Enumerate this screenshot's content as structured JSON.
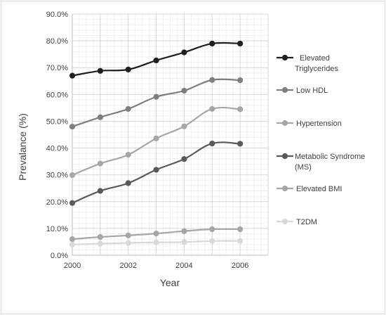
{
  "chart_data": {
    "type": "line",
    "xlabel": "Year",
    "ylabel": "Prevalance (%)",
    "x": [
      2000,
      2001,
      2002,
      2003,
      2004,
      2005,
      2006
    ],
    "x_ticks": [
      "2000",
      "2002",
      "2004",
      "2006"
    ],
    "y_ticks": [
      "0.0%",
      "10.0%",
      "20.0%",
      "30.0%",
      "40.0%",
      "50.0%",
      "60.0%",
      "70.0%",
      "80.0%",
      "90.0%"
    ],
    "xlim": [
      2000,
      2007
    ],
    "ylim": [
      0,
      90
    ],
    "grid": true,
    "legend_position": "right",
    "series": [
      {
        "name": "Elevated Triglycerides",
        "legend_lines": [
          "Elevated",
          "Triglycerides"
        ],
        "color": "#1f1f1f",
        "values": [
          67.0,
          68.8,
          69.3,
          72.7,
          75.7,
          79.0,
          79.0
        ]
      },
      {
        "name": "Low HDL",
        "legend_lines": [
          "Low HDL"
        ],
        "color": "#7f7f7f",
        "values": [
          48.0,
          51.5,
          54.6,
          59.1,
          61.4,
          65.4,
          65.3
        ]
      },
      {
        "name": "Hypertension",
        "legend_lines": [
          "Hypertension"
        ],
        "color": "#a6a6a6",
        "values": [
          29.9,
          34.2,
          37.5,
          43.6,
          48.1,
          54.6,
          54.5
        ]
      },
      {
        "name": "Metabolic Syndrome (MS)",
        "legend_lines": [
          "Metabolic Syndrome",
          "(MS)"
        ],
        "color": "#595959",
        "values": [
          19.5,
          24.0,
          26.9,
          31.9,
          35.9,
          41.7,
          41.6
        ]
      },
      {
        "name": "Elevated BMI",
        "legend_lines": [
          "Elevated BMI"
        ],
        "color": "#a6a6a6",
        "values": [
          6.0,
          6.8,
          7.4,
          8.1,
          9.0,
          9.7,
          9.7
        ]
      },
      {
        "name": "T2DM",
        "legend_lines": [
          "T2DM"
        ],
        "color": "#d9d9d9",
        "values": [
          4.0,
          4.3,
          4.6,
          4.8,
          4.9,
          5.3,
          5.3
        ]
      }
    ]
  }
}
